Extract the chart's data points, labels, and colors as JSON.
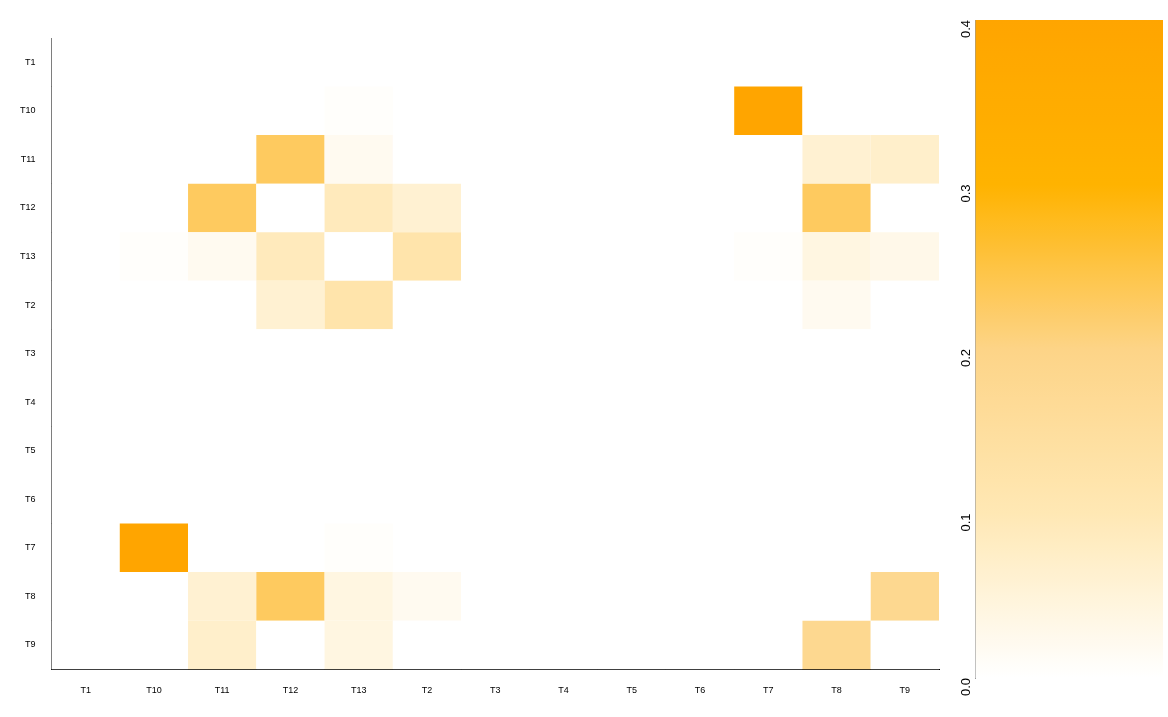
{
  "chart_data": {
    "type": "heatmap",
    "categories": [
      "T1",
      "T10",
      "T11",
      "T12",
      "T13",
      "T2",
      "T3",
      "T4",
      "T5",
      "T6",
      "T7",
      "T8",
      "T9"
    ],
    "y_categories": [
      "T1",
      "T10",
      "T11",
      "T12",
      "T13",
      "T2",
      "T3",
      "T4",
      "T5",
      "T6",
      "T7",
      "T8",
      "T9"
    ],
    "cells": [
      [
        0,
        0,
        0,
        0,
        0,
        0,
        0,
        0,
        0,
        0,
        0,
        0,
        0
      ],
      [
        0,
        0,
        0,
        0,
        0.005,
        0,
        0,
        0,
        0,
        0,
        0.4,
        0,
        0
      ],
      [
        0,
        0,
        0,
        0.23,
        0.02,
        0,
        0,
        0,
        0,
        0,
        0,
        0.06,
        0.07
      ],
      [
        0,
        0,
        0.23,
        0,
        0.09,
        0.06,
        0,
        0,
        0,
        0,
        0,
        0.23,
        0
      ],
      [
        0,
        0.005,
        0.02,
        0.09,
        0,
        0.12,
        0,
        0,
        0,
        0,
        0.005,
        0.04,
        0.03
      ],
      [
        0,
        0,
        0,
        0.06,
        0.12,
        0,
        0,
        0,
        0,
        0,
        0,
        0.02,
        0
      ],
      [
        0,
        0,
        0,
        0,
        0,
        0,
        0,
        0,
        0,
        0,
        0,
        0,
        0
      ],
      [
        0,
        0,
        0,
        0,
        0,
        0,
        0,
        0,
        0,
        0,
        0,
        0,
        0
      ],
      [
        0,
        0,
        0,
        0,
        0,
        0,
        0,
        0,
        0,
        0,
        0,
        0,
        0
      ],
      [
        0,
        0,
        0,
        0,
        0,
        0,
        0,
        0,
        0,
        0,
        0,
        0,
        0
      ],
      [
        0,
        0.4,
        0,
        0,
        0.005,
        0,
        0,
        0,
        0,
        0,
        0,
        0,
        0
      ],
      [
        0,
        0,
        0.06,
        0.23,
        0.04,
        0.02,
        0,
        0,
        0,
        0,
        0,
        0,
        0.18
      ],
      [
        0,
        0,
        0.07,
        0,
        0.04,
        0,
        0,
        0,
        0,
        0,
        0,
        0.18,
        0
      ]
    ],
    "clim": [
      0,
      0.4
    ],
    "cticks": [
      {
        "value": 0,
        "label": "0.0"
      },
      0.1,
      0.2,
      0.3,
      0.4
    ],
    "colors": [
      "#ffffff",
      "#ffe8b4",
      "#fdd487",
      "#ffb300",
      "#ffa500"
    ]
  }
}
